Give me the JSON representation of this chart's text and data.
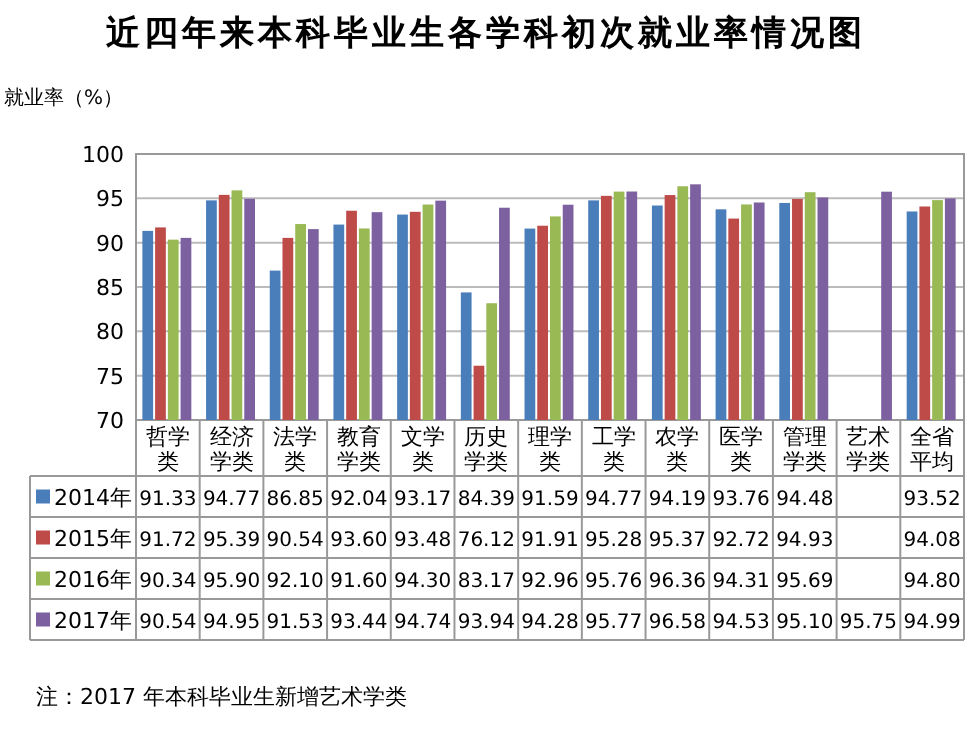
{
  "chart_data": {
    "type": "bar",
    "title": "近四年来本科毕业生各学科初次就业率情况图",
    "ylabel": "就业率（%）",
    "annotations": [
      "注：2017 年本科毕业生新增艺术学类"
    ],
    "categories": [
      "哲学类",
      "经济学类",
      "法学类",
      "教育学类",
      "文学类",
      "历史学类",
      "理学类",
      "工学类",
      "农学类",
      "医学类",
      "管理学类",
      "艺术学类",
      "全省平均"
    ],
    "ylim": [
      70,
      100
    ],
    "yticks": [
      70,
      75,
      80,
      85,
      90,
      95,
      100
    ],
    "grid": "y",
    "legend": "bottom left",
    "series": [
      {
        "name": "2014年",
        "color": "#4a7ebb",
        "values": [
          91.33,
          94.77,
          86.85,
          92.04,
          93.17,
          84.39,
          91.59,
          94.77,
          94.19,
          93.76,
          94.48,
          null,
          93.52
        ],
        "value_labels": [
          "91.33",
          "94.77",
          "86.85",
          "92.04",
          "93.17",
          "84.39",
          "91.59",
          "94.77",
          "94.19",
          "93.76",
          "94.48",
          null,
          "93.52"
        ]
      },
      {
        "name": "2015年",
        "color": "#be4b48",
        "values": [
          91.72,
          95.39,
          90.54,
          93.6,
          93.48,
          76.12,
          91.91,
          95.28,
          95.37,
          92.72,
          94.93,
          null,
          94.08
        ],
        "value_labels": [
          "91.72",
          "95.39",
          "90.54",
          "93.60",
          "93.48",
          "76.12",
          "91.91",
          "95.28",
          "95.37",
          "92.72",
          "94.93",
          null,
          "94.08"
        ]
      },
      {
        "name": "2016年",
        "color": "#98b954",
        "values": [
          90.34,
          95.9,
          92.1,
          91.6,
          94.3,
          83.17,
          92.96,
          95.76,
          96.36,
          94.31,
          95.69,
          null,
          94.8
        ],
        "value_labels": [
          "90.34",
          "95.90",
          "92.10",
          "91.60",
          "94.30",
          "83.17",
          "92.96",
          "95.76",
          "96.36",
          "94.31",
          "95.69",
          null,
          "94.80"
        ]
      },
      {
        "name": "2017年",
        "color": "#7d60a0",
        "values": [
          90.54,
          94.95,
          91.53,
          93.44,
          94.74,
          93.94,
          94.28,
          95.77,
          96.58,
          94.53,
          95.1,
          95.75,
          94.99
        ],
        "value_labels": [
          "90.54",
          "94.95",
          "91.53",
          "93.44",
          "94.74",
          "93.94",
          "94.28",
          "95.77",
          "96.58",
          "94.53",
          "95.10",
          "95.75",
          "94.99"
        ]
      }
    ]
  }
}
